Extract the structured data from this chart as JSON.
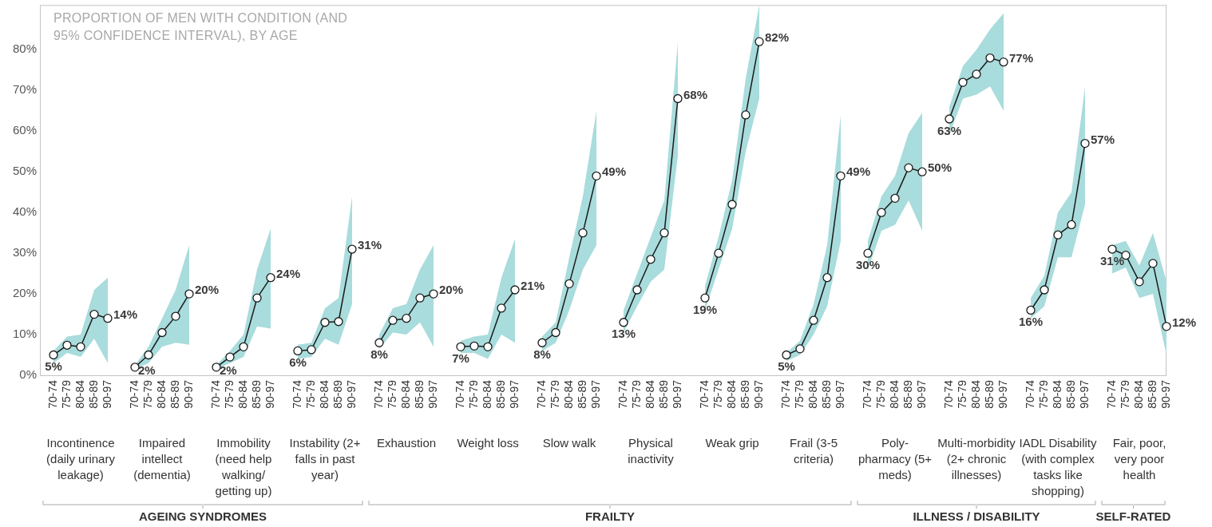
{
  "chart_data": [
    {
      "type": "line",
      "title": "PROPORTION OF MEN WITH CONDITION (AND 95% CONFIDENCE INTERVAL), BY AGE",
      "xlabel": "Incontinence (daily urinary leakage)",
      "annotations": [
        "AGEING SYNDROMES"
      ],
      "categories": [
        "70-74",
        "75-79",
        "80-84",
        "85-89",
        "90-97"
      ],
      "series": [
        {
          "color": "#1a1a1a",
          "values": [
            5,
            7.4,
            7,
            15,
            14
          ],
          "lower": [
            3,
            5.5,
            4.5,
            9,
            3
          ],
          "upper": [
            6,
            9.5,
            10,
            21,
            24
          ],
          "value_labels": [
            "5%",
            null,
            null,
            null,
            "14%"
          ]
        }
      ],
      "ylim": [
        0,
        91
      ],
      "yticks": [
        {
          "value": 0,
          "label": "0%"
        },
        {
          "value": 10,
          "label": "10%"
        },
        {
          "value": 20,
          "label": "20%"
        },
        {
          "value": 30,
          "label": "30%"
        },
        {
          "value": 40,
          "label": "40%"
        },
        {
          "value": 50,
          "label": "50%"
        },
        {
          "value": 60,
          "label": "60%"
        },
        {
          "value": 70,
          "label": "70%"
        },
        {
          "value": 80,
          "label": "80%"
        }
      ],
      "marker": "circle"
    },
    {
      "type": "line",
      "xlabel": "Impaired intellect (dementia)",
      "categories": [
        "70-74",
        "75-79",
        "80-84",
        "85-89",
        "90-97"
      ],
      "series": [
        {
          "color": "#1a1a1a",
          "values": [
            2,
            5,
            10.5,
            14.5,
            20
          ],
          "lower": [
            1.5,
            3,
            7,
            8,
            7.5
          ],
          "upper": [
            2.5,
            7,
            14,
            21,
            32
          ],
          "value_labels": [
            "2%",
            null,
            null,
            null,
            "20%"
          ]
        }
      ],
      "ylim": [
        0,
        91
      ],
      "marker": "circle",
      "tick_labels": "x"
    },
    {
      "type": "line",
      "xlabel": "Immobility (need help walking/ getting up)",
      "categories": [
        "70-74",
        "75-79",
        "80-84",
        "85-89",
        "90-97"
      ],
      "series": [
        {
          "color": "#1a1a1a",
          "values": [
            2,
            4.5,
            7,
            19,
            24
          ],
          "lower": [
            1.5,
            3,
            4.5,
            12,
            11.5
          ],
          "upper": [
            2.5,
            6,
            10,
            26,
            36
          ],
          "value_labels": [
            "2%",
            null,
            null,
            null,
            "24%"
          ]
        }
      ],
      "ylim": [
        0,
        91
      ],
      "marker": "circle",
      "tick_labels": "x"
    },
    {
      "type": "line",
      "xlabel": "Instability (2+ falls in past year)",
      "categories": [
        "70-74",
        "75-79",
        "80-84",
        "85-89",
        "90-97"
      ],
      "series": [
        {
          "color": "#1a1a1a",
          "values": [
            6,
            6.3,
            13,
            13.2,
            31
          ],
          "lower": [
            4,
            4.5,
            9,
            7.5,
            17.5
          ],
          "upper": [
            7.5,
            8,
            16.5,
            19,
            44
          ],
          "value_labels": [
            "6%",
            null,
            null,
            null,
            "31%"
          ]
        }
      ],
      "ylim": [
        0,
        91
      ],
      "marker": "circle",
      "tick_labels": "x"
    },
    {
      "type": "line",
      "xlabel": "Exhaustion",
      "annotations": [
        "FRAILTY"
      ],
      "categories": [
        "70-74",
        "75-79",
        "80-84",
        "85-89",
        "90-97"
      ],
      "series": [
        {
          "color": "#1a1a1a",
          "values": [
            8,
            13.5,
            14,
            19,
            20
          ],
          "lower": [
            6.5,
            10.5,
            10,
            13,
            7
          ],
          "upper": [
            10,
            16.5,
            17.5,
            26,
            32
          ],
          "value_labels": [
            "8%",
            null,
            null,
            null,
            "20%"
          ]
        }
      ],
      "ylim": [
        0,
        91
      ],
      "marker": "circle",
      "tick_labels": "x"
    },
    {
      "type": "line",
      "xlabel": "Weight loss",
      "categories": [
        "70-74",
        "75-79",
        "80-84",
        "85-89",
        "90-97"
      ],
      "series": [
        {
          "color": "#1a1a1a",
          "values": [
            7,
            7.2,
            7,
            16.5,
            21
          ],
          "lower": [
            5.5,
            5.5,
            4,
            10,
            8
          ],
          "upper": [
            8.5,
            9.5,
            10,
            24,
            33.5
          ],
          "value_labels": [
            "7%",
            null,
            null,
            null,
            "21%"
          ]
        }
      ],
      "ylim": [
        0,
        91
      ],
      "marker": "circle",
      "tick_labels": "x"
    },
    {
      "type": "line",
      "xlabel": "Slow walk",
      "categories": [
        "70-74",
        "75-79",
        "80-84",
        "85-89",
        "90-97"
      ],
      "series": [
        {
          "color": "#1a1a1a",
          "values": [
            8,
            10.5,
            22.5,
            35,
            49
          ],
          "lower": [
            6,
            8,
            16,
            26,
            32
          ],
          "upper": [
            9.5,
            13,
            29,
            44,
            65
          ],
          "value_labels": [
            "8%",
            null,
            null,
            null,
            "49%"
          ]
        }
      ],
      "ylim": [
        0,
        91
      ],
      "marker": "circle",
      "tick_labels": "x"
    },
    {
      "type": "line",
      "xlabel": "Physical inactivity",
      "categories": [
        "70-74",
        "75-79",
        "80-84",
        "85-89",
        "90-97"
      ],
      "series": [
        {
          "color": "#1a1a1a",
          "values": [
            13,
            21,
            28.5,
            35,
            68
          ],
          "lower": [
            10.5,
            17,
            23,
            26,
            54
          ],
          "upper": [
            16,
            25,
            34,
            43,
            82
          ],
          "value_labels": [
            "13%",
            null,
            null,
            null,
            "68%"
          ]
        }
      ],
      "ylim": [
        0,
        91
      ],
      "marker": "circle",
      "tick_labels": "x"
    },
    {
      "type": "line",
      "xlabel": "Weak grip",
      "categories": [
        "70-74",
        "75-79",
        "80-84",
        "85-89",
        "90-97"
      ],
      "series": [
        {
          "color": "#1a1a1a",
          "values": [
            19,
            30,
            42,
            64,
            82
          ],
          "lower": [
            16,
            26,
            36,
            55,
            68
          ],
          "upper": [
            22,
            34,
            48,
            73,
            91
          ],
          "value_labels": [
            "19%",
            null,
            null,
            null,
            "82%"
          ]
        }
      ],
      "ylim": [
        0,
        91
      ],
      "marker": "circle",
      "tick_labels": "x"
    },
    {
      "type": "line",
      "xlabel": "Frail (3-5 criteria)",
      "categories": [
        "70-74",
        "75-79",
        "80-84",
        "85-89",
        "90-97"
      ],
      "series": [
        {
          "color": "#1a1a1a",
          "values": [
            5,
            6.5,
            13.5,
            24,
            49
          ],
          "lower": [
            3.5,
            5,
            10,
            17,
            33
          ],
          "upper": [
            5.5,
            8.5,
            17.5,
            32,
            64
          ],
          "value_labels": [
            "5%",
            null,
            null,
            null,
            "49%"
          ]
        }
      ],
      "ylim": [
        0,
        91
      ],
      "marker": "circle",
      "tick_labels": "x"
    },
    {
      "type": "line",
      "xlabel": "Poly-pharmacy (5+ meds)",
      "annotations": [
        "ILLNESS / DISABILITY"
      ],
      "categories": [
        "70-74",
        "75-79",
        "80-84",
        "85-89",
        "90-97"
      ],
      "series": [
        {
          "color": "#1a1a1a",
          "values": [
            30,
            40,
            43.5,
            51,
            50
          ],
          "lower": [
            26,
            35.5,
            37,
            43,
            35.5
          ],
          "upper": [
            33,
            44,
            49,
            59.5,
            64.5
          ],
          "value_labels": [
            "30%",
            null,
            null,
            null,
            "50%"
          ]
        }
      ],
      "ylim": [
        0,
        91
      ],
      "marker": "circle",
      "tick_labels": "x"
    },
    {
      "type": "line",
      "xlabel": "Multi-morbidity (2+ chronic illnesses)",
      "categories": [
        "70-74",
        "75-79",
        "80-84",
        "85-89",
        "90-97"
      ],
      "series": [
        {
          "color": "#1a1a1a",
          "values": [
            63,
            72,
            74,
            78,
            77
          ],
          "lower": [
            59,
            68,
            69,
            71,
            65
          ],
          "upper": [
            66,
            76,
            80,
            85,
            89
          ],
          "value_labels": [
            "63%",
            null,
            null,
            null,
            "77%"
          ]
        }
      ],
      "ylim": [
        0,
        91
      ],
      "marker": "circle",
      "tick_labels": "x"
    },
    {
      "type": "line",
      "xlabel": "IADL Disability (with complex tasks like shopping)",
      "categories": [
        "70-74",
        "75-79",
        "80-84",
        "85-89",
        "90-97"
      ],
      "series": [
        {
          "color": "#1a1a1a",
          "values": [
            16,
            21,
            34.5,
            37,
            57
          ],
          "lower": [
            14,
            17,
            29,
            29,
            42
          ],
          "upper": [
            19,
            24.5,
            40,
            45,
            71
          ],
          "value_labels": [
            "16%",
            null,
            null,
            null,
            "57%"
          ]
        }
      ],
      "ylim": [
        0,
        91
      ],
      "marker": "circle",
      "tick_labels": "x"
    },
    {
      "type": "line",
      "xlabel": "Fair, poor, very poor health",
      "annotations": [
        "SELF-RATED"
      ],
      "categories": [
        "70-74",
        "75-79",
        "80-84",
        "85-89",
        "90-97"
      ],
      "series": [
        {
          "color": "#1a1a1a",
          "values": [
            31,
            29.5,
            23,
            27.5,
            12
          ],
          "lower": [
            25,
            26.5,
            19,
            20,
            5
          ],
          "upper": [
            32,
            33,
            27,
            35,
            23
          ],
          "value_labels": [
            "31%",
            null,
            null,
            null,
            "12%"
          ]
        }
      ],
      "ylim": [
        0,
        91
      ],
      "marker": "circle",
      "tick_labels": "x"
    }
  ]
}
